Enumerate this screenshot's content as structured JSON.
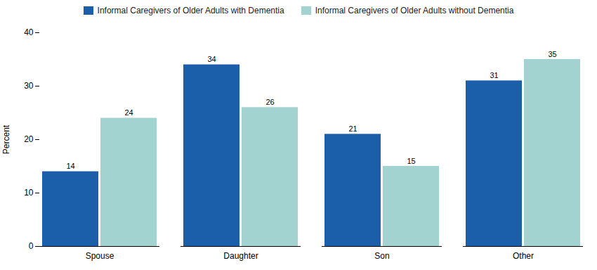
{
  "chart_data": {
    "type": "bar",
    "categories": [
      "Spouse",
      "Daughter",
      "Son",
      "Other"
    ],
    "series": [
      {
        "name": "Informal Caregivers of Older Adults with Dementia",
        "color": "#1b5faa",
        "values": [
          14,
          34,
          21,
          31
        ]
      },
      {
        "name": "Informal Caregivers of Older Adults without Dementia",
        "color": "#a2d3d0",
        "values": [
          24,
          26,
          15,
          35
        ]
      }
    ],
    "ylabel": "Percent",
    "ylim": [
      0,
      40
    ],
    "yticks": [
      0,
      10,
      20,
      30,
      40
    ],
    "grid": false,
    "legend": "top",
    "data_labels": true
  }
}
